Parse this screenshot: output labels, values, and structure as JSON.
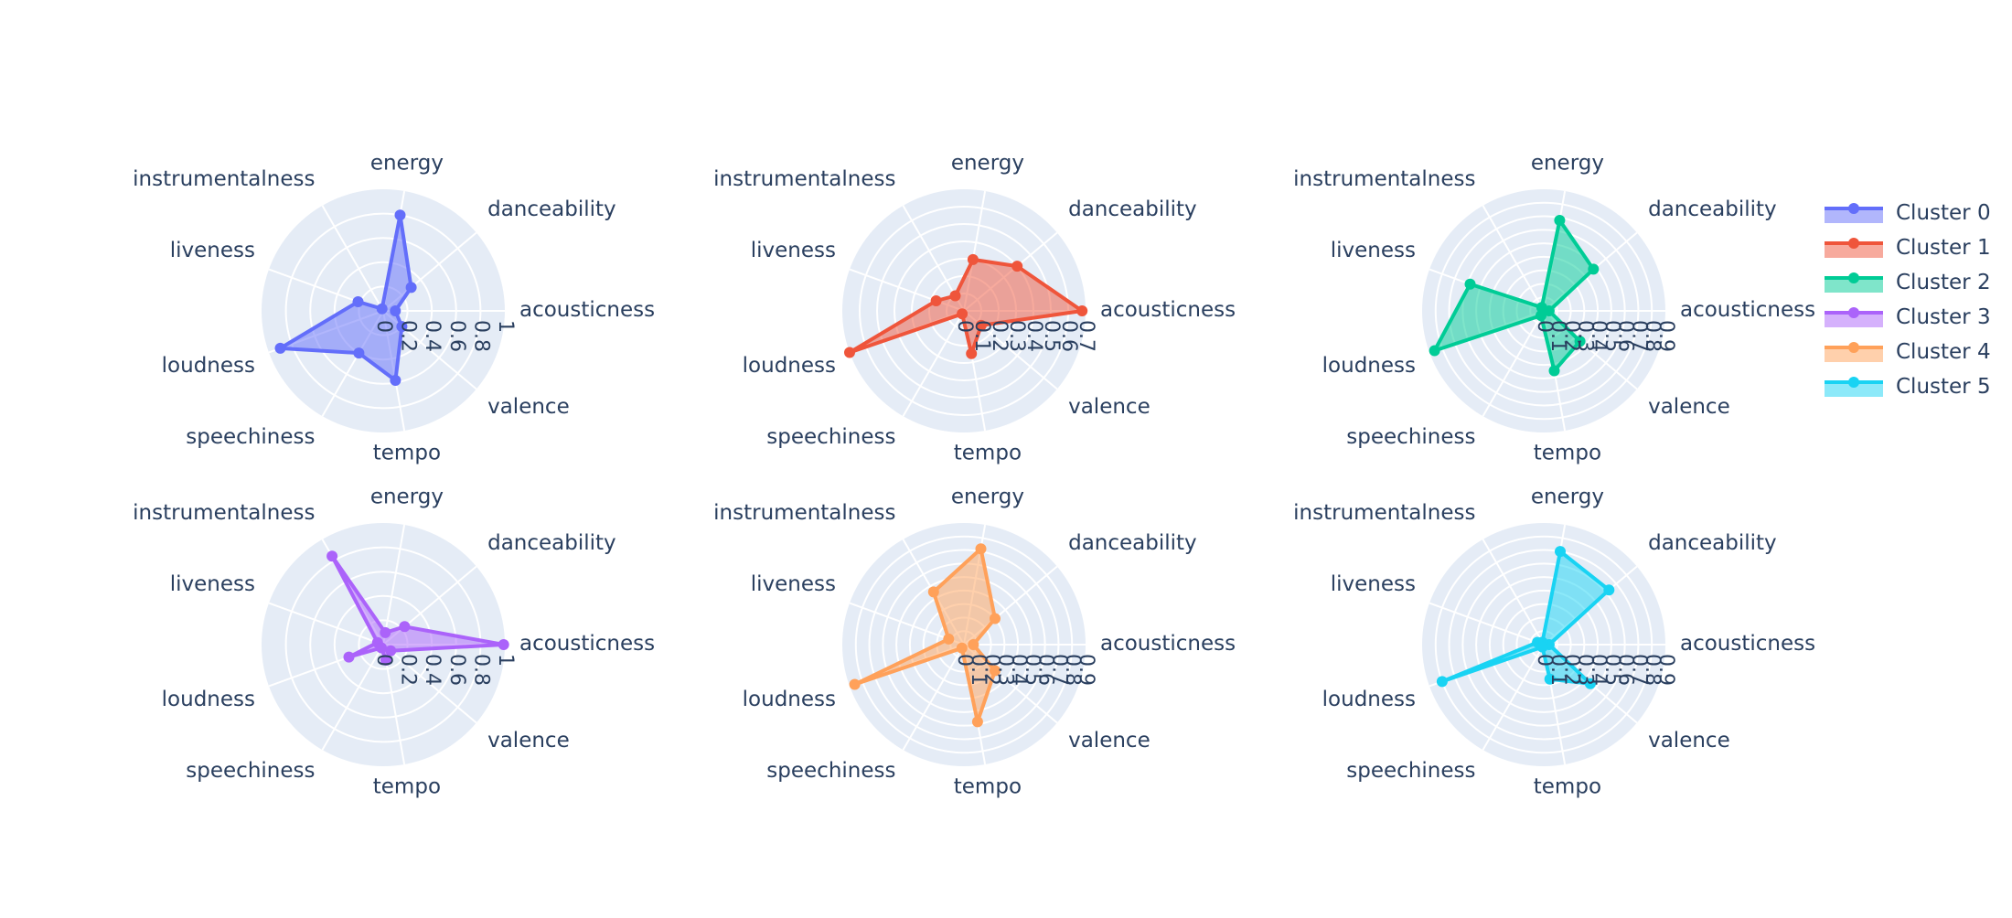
{
  "colors": {
    "grid_bg": "#E5ECF6",
    "grid_line": "#ffffff",
    "text": "#2a3f5f"
  },
  "legend": {
    "placement": "top-right",
    "entries": [
      "Cluster 0",
      "Cluster 1",
      "Cluster 2",
      "Cluster 3",
      "Cluster 4",
      "Cluster 5"
    ]
  },
  "chart_data": [
    {
      "type": "radar",
      "name": "Cluster 0",
      "color": "#636EFA",
      "categories": [
        "acousticness",
        "danceability",
        "energy",
        "instrumentalness",
        "liveness",
        "loudness",
        "speechiness",
        "tempo",
        "valence"
      ],
      "values": [
        0.1,
        0.3,
        0.8,
        0.02,
        0.22,
        0.9,
        0.4,
        0.58,
        0.2
      ],
      "radial_range": [
        0,
        1
      ],
      "radial_ticks": [
        "0",
        "0.2",
        "0.4",
        "0.6",
        "0.8",
        "1"
      ],
      "radial_tick_values": [
        0,
        0.2,
        0.4,
        0.6,
        0.8,
        1
      ]
    },
    {
      "type": "radar",
      "name": "Cluster 1",
      "color": "#EF553B",
      "categories": [
        "acousticness",
        "danceability",
        "energy",
        "instrumentalness",
        "liveness",
        "loudness",
        "speechiness",
        "tempo",
        "valence"
      ],
      "values": [
        0.68,
        0.4,
        0.3,
        0.1,
        0.17,
        0.82,
        0.02,
        0.25,
        0.13
      ],
      "radial_range": [
        0,
        0.7
      ],
      "radial_ticks": [
        "0",
        "0.1",
        "0.2",
        "0.3",
        "0.4",
        "0.5",
        "0.6",
        "0.7"
      ],
      "radial_tick_values": [
        0,
        0.1,
        0.2,
        0.3,
        0.4,
        0.5,
        0.6,
        0.7
      ]
    },
    {
      "type": "radar",
      "name": "Cluster 2",
      "color": "#00CC96",
      "categories": [
        "acousticness",
        "danceability",
        "energy",
        "instrumentalness",
        "liveness",
        "loudness",
        "speechiness",
        "tempo",
        "valence"
      ],
      "values": [
        0.04,
        0.48,
        0.68,
        0.03,
        0.58,
        0.86,
        0.04,
        0.45,
        0.35
      ],
      "radial_range": [
        0,
        0.9
      ],
      "radial_ticks": [
        "0",
        "0.1",
        "0.2",
        "0.3",
        "0.4",
        "0.5",
        "0.6",
        "0.7",
        "0.8",
        "0.9"
      ],
      "radial_tick_values": [
        0,
        0.1,
        0.2,
        0.3,
        0.4,
        0.5,
        0.6,
        0.7,
        0.8,
        0.9
      ]
    },
    {
      "type": "radar",
      "name": "Cluster 3",
      "color": "#AB63FA",
      "categories": [
        "acousticness",
        "danceability",
        "energy",
        "instrumentalness",
        "liveness",
        "loudness",
        "speechiness",
        "tempo",
        "valence"
      ],
      "values": [
        0.99,
        0.23,
        0.1,
        0.84,
        0.05,
        0.3,
        0.03,
        0.13,
        0.08
      ],
      "radial_range": [
        0,
        1
      ],
      "radial_ticks": [
        "0",
        "0.2",
        "0.4",
        "0.6",
        "0.8",
        "1"
      ],
      "radial_tick_values": [
        0,
        0.2,
        0.4,
        0.6,
        0.8,
        1
      ]
    },
    {
      "type": "radar",
      "name": "Cluster 4",
      "color": "#FFA15A",
      "categories": [
        "acousticness",
        "danceability",
        "energy",
        "instrumentalness",
        "liveness",
        "loudness",
        "speechiness",
        "tempo",
        "valence"
      ],
      "values": [
        0.07,
        0.3,
        0.72,
        0.45,
        0.12,
        0.86,
        0.03,
        0.58,
        0.3
      ],
      "radial_range": [
        0,
        0.9
      ],
      "radial_ticks": [
        "0",
        "0.1",
        "0.2",
        "0.3",
        "0.4",
        "0.5",
        "0.6",
        "0.7",
        "0.8",
        "0.9"
      ],
      "radial_tick_values": [
        0,
        0.1,
        0.2,
        0.3,
        0.4,
        0.5,
        0.6,
        0.7,
        0.8,
        0.9
      ]
    },
    {
      "type": "radar",
      "name": "Cluster 5",
      "color": "#19D3F3",
      "categories": [
        "acousticness",
        "danceability",
        "energy",
        "instrumentalness",
        "liveness",
        "loudness",
        "speechiness",
        "tempo",
        "valence"
      ],
      "values": [
        0.04,
        0.63,
        0.7,
        0.02,
        0.05,
        0.8,
        0.02,
        0.26,
        0.45
      ],
      "radial_range": [
        0,
        0.9
      ],
      "radial_ticks": [
        "0",
        "0.1",
        "0.2",
        "0.3",
        "0.4",
        "0.5",
        "0.6",
        "0.7",
        "0.8",
        "0.9"
      ],
      "radial_tick_values": [
        0,
        0.1,
        0.2,
        0.3,
        0.4,
        0.5,
        0.6,
        0.7,
        0.8,
        0.9
      ]
    }
  ]
}
